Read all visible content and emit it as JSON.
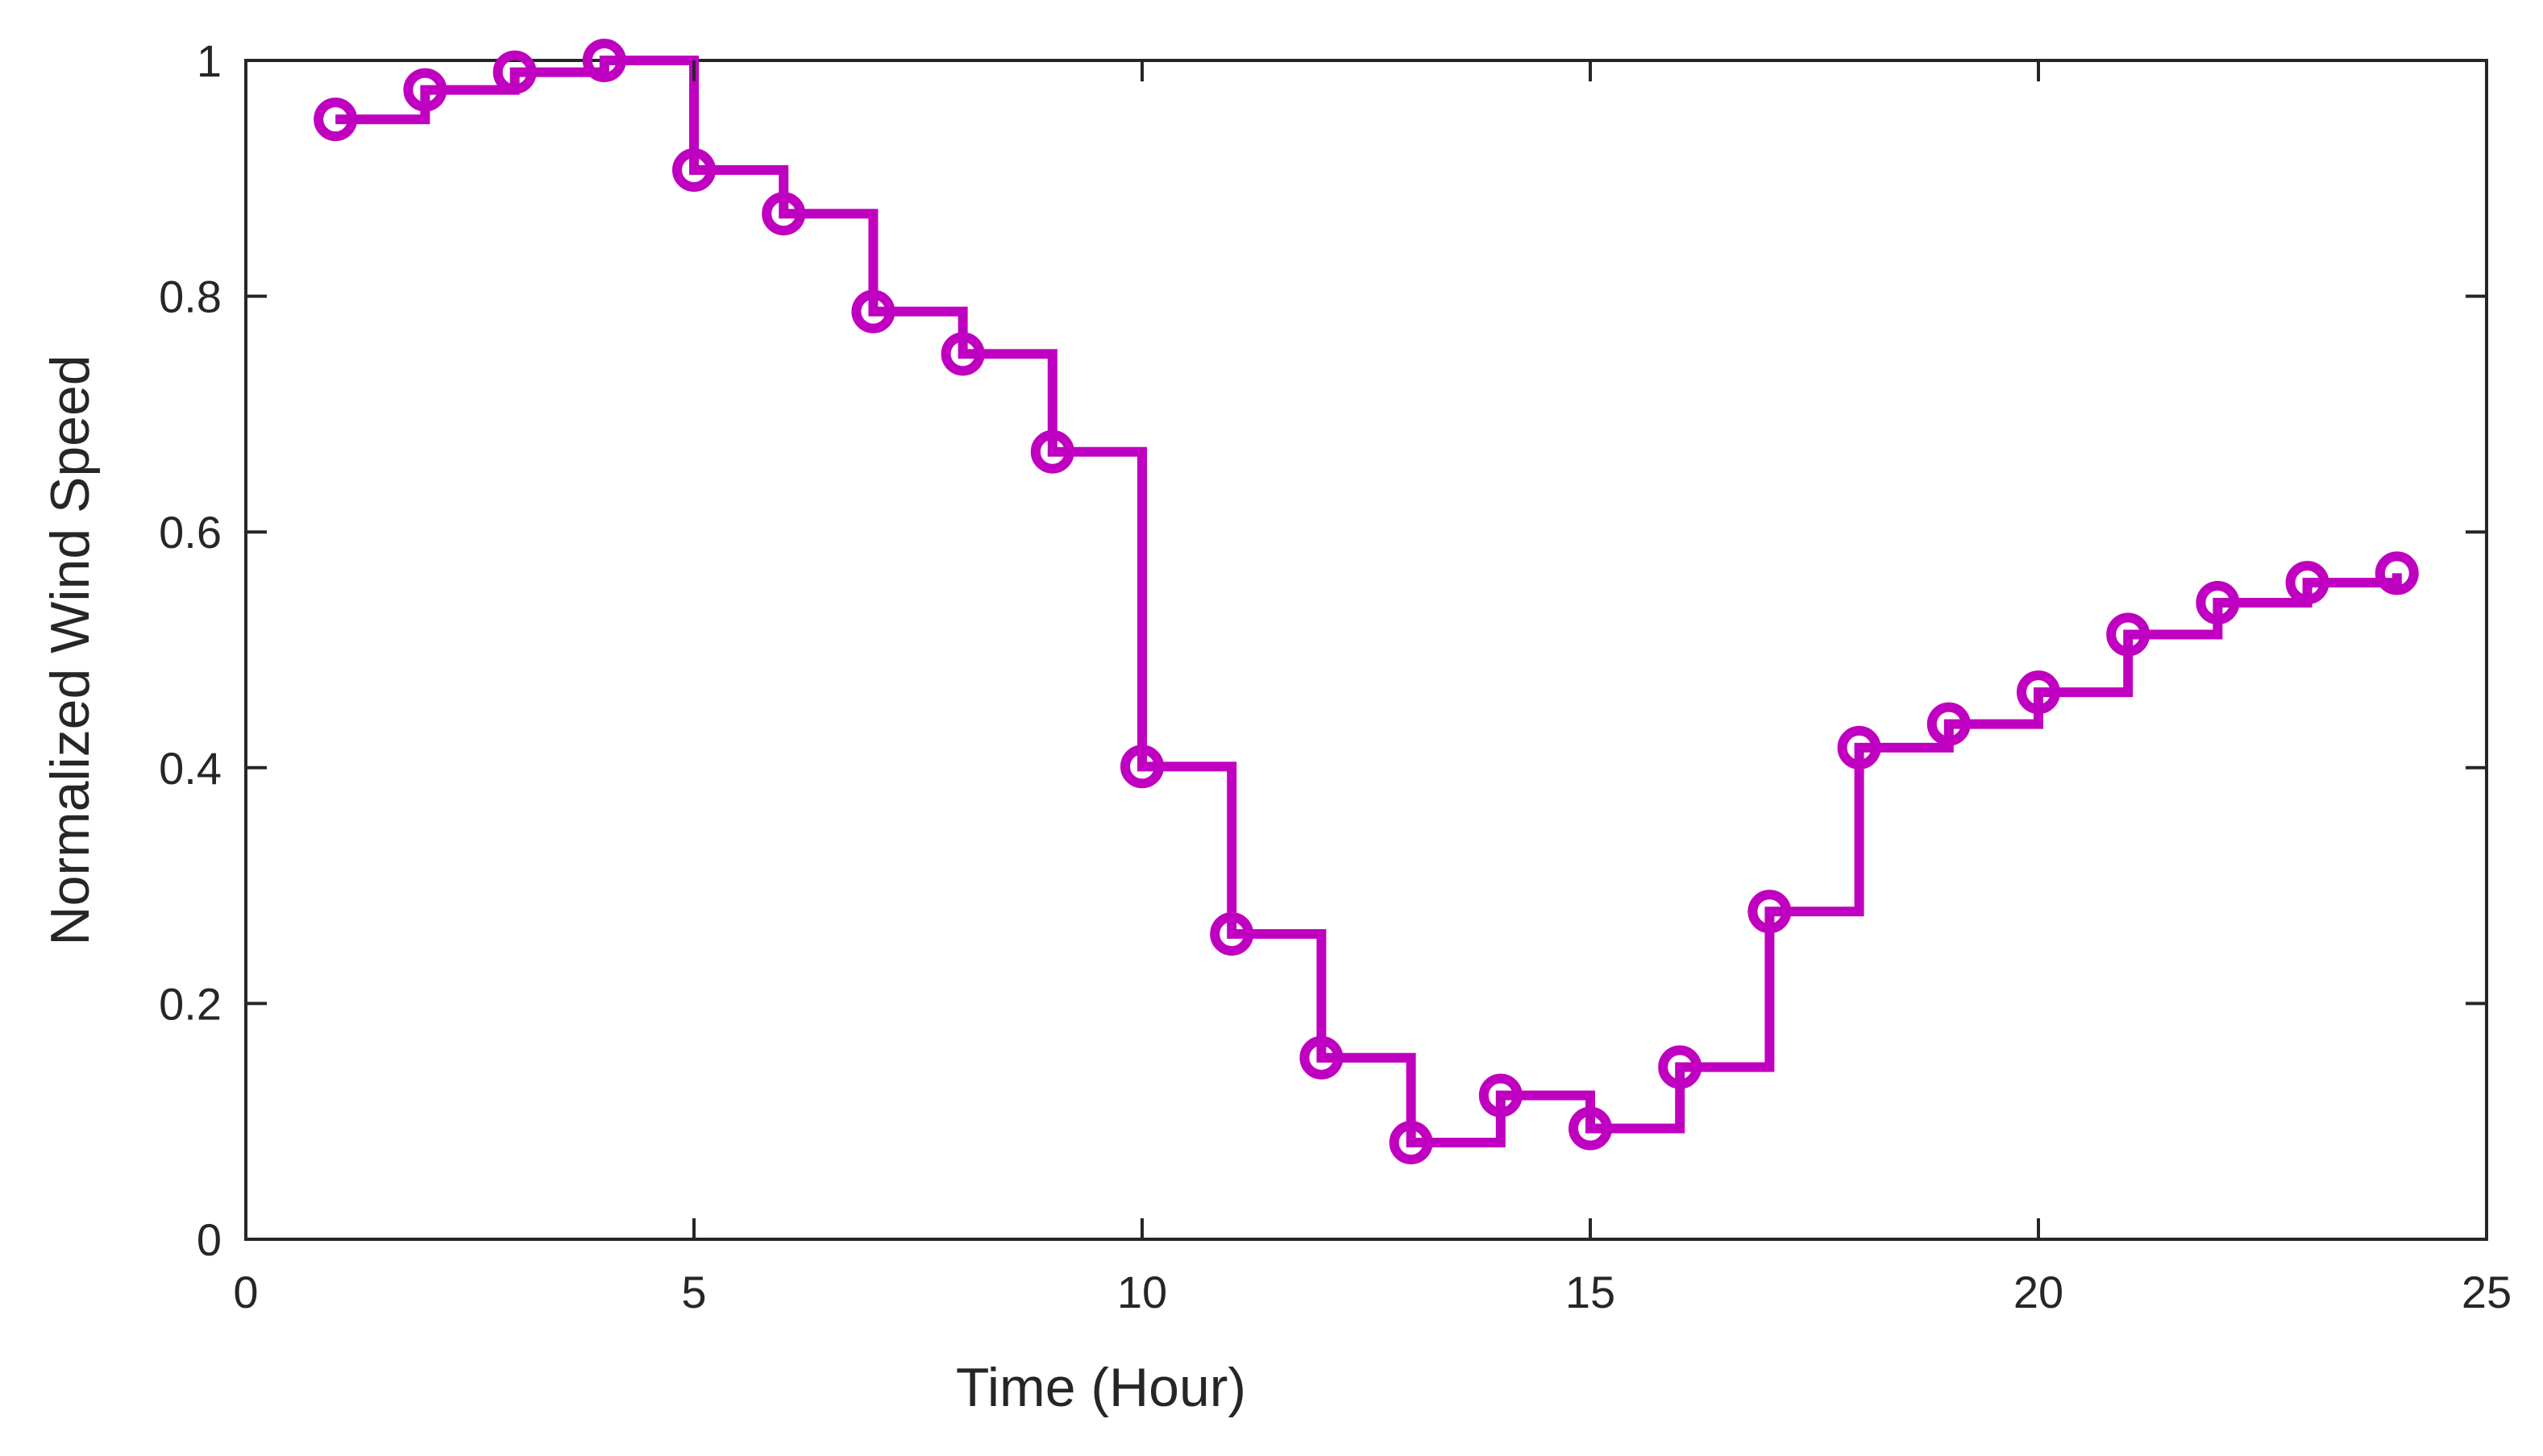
{
  "chart_data": {
    "type": "line",
    "style": "stairs-with-circle-markers",
    "xlabel": "Time (Hour)",
    "ylabel": "Normalized Wind Speed",
    "xlim": [
      0,
      25
    ],
    "ylim": [
      0,
      1
    ],
    "xticks": [
      0,
      5,
      10,
      15,
      20,
      25
    ],
    "yticks": [
      0,
      0.2,
      0.4,
      0.6,
      0.8,
      1
    ],
    "xtick_labels": [
      "0",
      "5",
      "10",
      "15",
      "20",
      "25"
    ],
    "ytick_labels": [
      "0",
      "0.2",
      "0.4",
      "0.6",
      "0.8",
      "1"
    ],
    "grid": false,
    "box": true,
    "color": "#C000C0",
    "series": [
      {
        "x": [
          1,
          2,
          3,
          4,
          5,
          6,
          7,
          8,
          9,
          10,
          11,
          12,
          13,
          14,
          15,
          16,
          17,
          18,
          19,
          20,
          21,
          22,
          23,
          24
        ],
        "y": [
          0.95,
          0.975,
          0.99,
          1.0,
          0.907,
          0.87,
          0.787,
          0.751,
          0.668,
          0.401,
          0.259,
          0.154,
          0.082,
          0.122,
          0.094,
          0.146,
          0.278,
          0.417,
          0.437,
          0.464,
          0.513,
          0.54,
          0.557,
          0.565
        ]
      }
    ]
  }
}
